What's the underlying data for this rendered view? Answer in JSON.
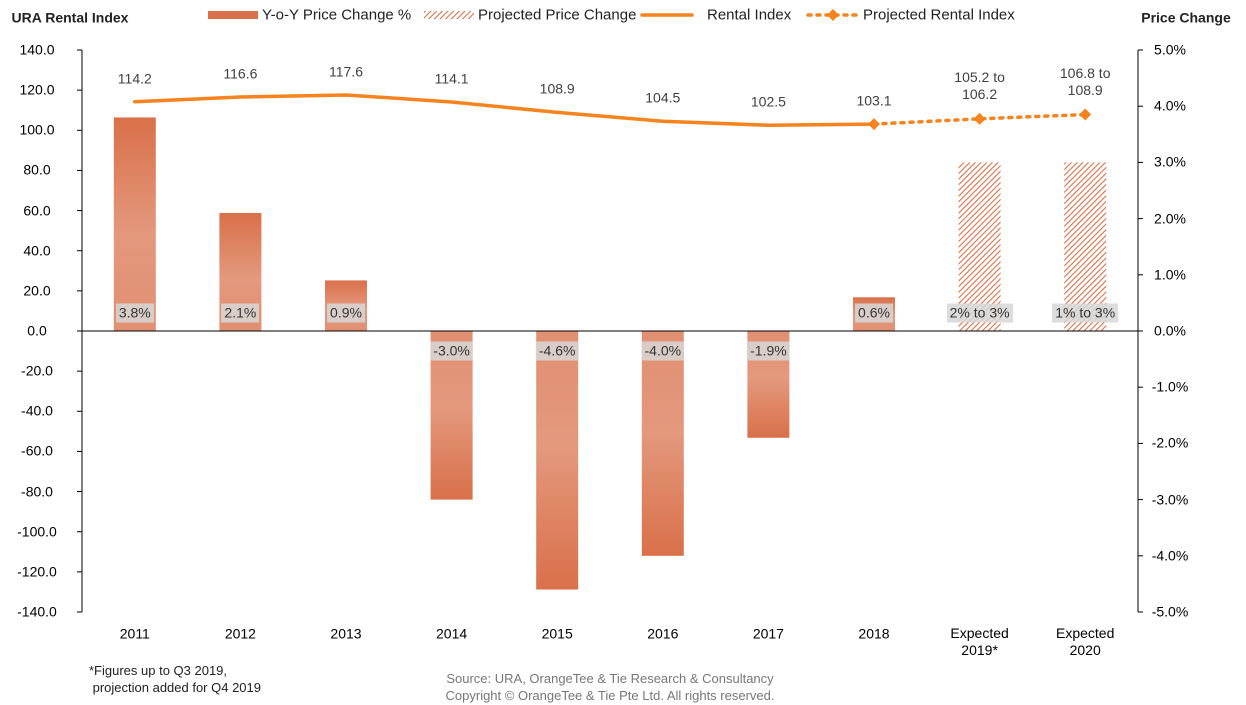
{
  "chart_data": {
    "type": "bar",
    "y_label": "URA Rental Index",
    "y2_label": "Price Change",
    "categories": [
      "2011",
      "2012",
      "2013",
      "2014",
      "2015",
      "2016",
      "2017",
      "2018",
      "Expected\n2019*",
      "Expected\n2020"
    ],
    "series": [
      {
        "name": "Y-o-Y Price Change %",
        "type": "bar",
        "axis": "y2",
        "color": "#d9704a",
        "values": [
          3.8,
          2.1,
          0.9,
          -3.0,
          -4.6,
          -4.0,
          -1.9,
          0.6,
          null,
          null
        ],
        "value_labels": [
          "3.8%",
          "2.1%",
          "0.9%",
          "-3.0%",
          "-4.6%",
          "-4.0%",
          "-1.9%",
          "0.6%",
          null,
          null
        ]
      },
      {
        "name": "Projected Price Change",
        "type": "bar",
        "axis": "y2",
        "color": "#d9704a",
        "pattern": "hatch",
        "values": [
          null,
          null,
          null,
          null,
          null,
          null,
          null,
          null,
          3,
          3
        ],
        "value_labels": [
          null,
          null,
          null,
          null,
          null,
          null,
          null,
          null,
          "2% to 3%",
          "1% to 3%"
        ]
      },
      {
        "name": "Rental Index",
        "type": "line",
        "color": "#f5841f",
        "values": [
          114.2,
          116.6,
          117.6,
          114.1,
          108.9,
          104.5,
          102.5,
          103.1,
          null,
          null
        ]
      },
      {
        "name": "Projected Rental Index",
        "type": "line",
        "color": "#f5841f",
        "dashed": true,
        "marker": "diamond",
        "values": [
          null,
          null,
          null,
          null,
          null,
          null,
          null,
          103.1,
          105.7,
          107.85
        ],
        "value_labels": [
          null,
          null,
          null,
          null,
          null,
          null,
          null,
          null,
          "105.2 to\n106.2",
          "106.8 to\n108.9"
        ]
      }
    ],
    "ylim": [
      -140,
      140
    ],
    "yticks": [
      {
        "value": 140,
        "label": "140.0"
      },
      {
        "value": 120,
        "label": "120.0"
      },
      {
        "value": 100,
        "label": "100.0"
      },
      {
        "value": 80,
        "label": "80.0"
      },
      {
        "value": 60,
        "label": "60.0"
      },
      {
        "value": 40,
        "label": "40.0"
      },
      {
        "value": 20,
        "label": "20.0"
      },
      {
        "value": 0,
        "label": "0.0"
      },
      {
        "value": -20,
        "label": "-20.0"
      },
      {
        "value": -40,
        "label": "-40.0"
      },
      {
        "value": -60,
        "label": "-60.0"
      },
      {
        "value": -80,
        "label": "-80.0"
      },
      {
        "value": -100,
        "label": "-100.0"
      },
      {
        "value": -120,
        "label": "-120.0"
      },
      {
        "value": -140,
        "label": "-140.0"
      }
    ],
    "y2lim": [
      -5,
      5
    ],
    "y2ticks": [
      {
        "value": 5,
        "label": "5.0%"
      },
      {
        "value": 4,
        "label": "4.0%"
      },
      {
        "value": 3,
        "label": "3.0%"
      },
      {
        "value": 2,
        "label": "2.0%"
      },
      {
        "value": 1,
        "label": "1.0%"
      },
      {
        "value": 0,
        "label": "0.0%"
      },
      {
        "value": -1,
        "label": "-1.0%"
      },
      {
        "value": -2,
        "label": "-2.0%"
      },
      {
        "value": -3,
        "label": "-3.0%"
      },
      {
        "value": -4,
        "label": "-4.0%"
      },
      {
        "value": -5,
        "label": "-5.0%"
      }
    ],
    "note": "*Figures up to Q3 2019,\n projection added for Q4 2019",
    "source": "Source: URA, OrangeTee & Tie Research & Consultancy\nCopyright © OrangeTee & Tie Pte Ltd. All rights reserved."
  }
}
